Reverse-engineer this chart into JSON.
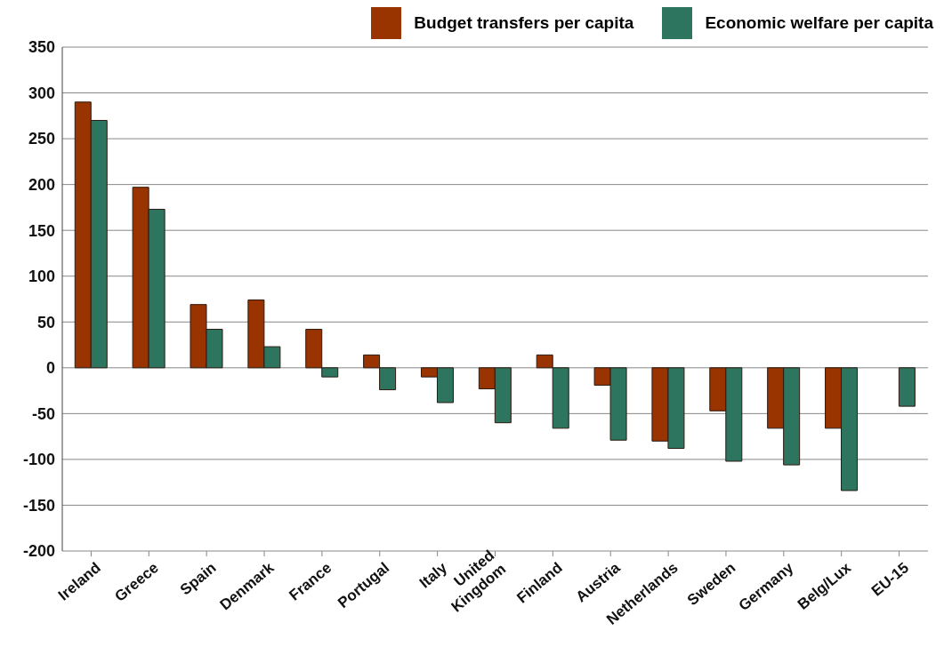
{
  "chart_data": {
    "type": "bar",
    "categories": [
      "Ireland",
      "Greece",
      "Spain",
      "Denmark",
      "France",
      "Portugal",
      "Italy",
      "United Kingdom",
      "Finland",
      "Austria",
      "Netherlands",
      "Sweden",
      "Germany",
      "Belg/Lux",
      "EU-15"
    ],
    "series": [
      {
        "name": "Budget transfers per capita",
        "color": "#993300",
        "values": [
          290,
          197,
          69,
          74,
          42,
          14,
          -10,
          -23,
          14,
          -19,
          -80,
          -47,
          -66,
          -66,
          null
        ]
      },
      {
        "name": "Economic welfare per capita",
        "color": "#2e7560",
        "values": [
          270,
          173,
          42,
          23,
          -10,
          -24,
          -38,
          -60,
          -66,
          -79,
          -88,
          -102,
          -106,
          -134,
          -42
        ]
      }
    ],
    "ylim": [
      -200,
      350
    ],
    "yticks": [
      -200,
      -150,
      -100,
      -50,
      0,
      50,
      100,
      150,
      200,
      250,
      300,
      350
    ],
    "grid": "y",
    "legend": "top right"
  }
}
